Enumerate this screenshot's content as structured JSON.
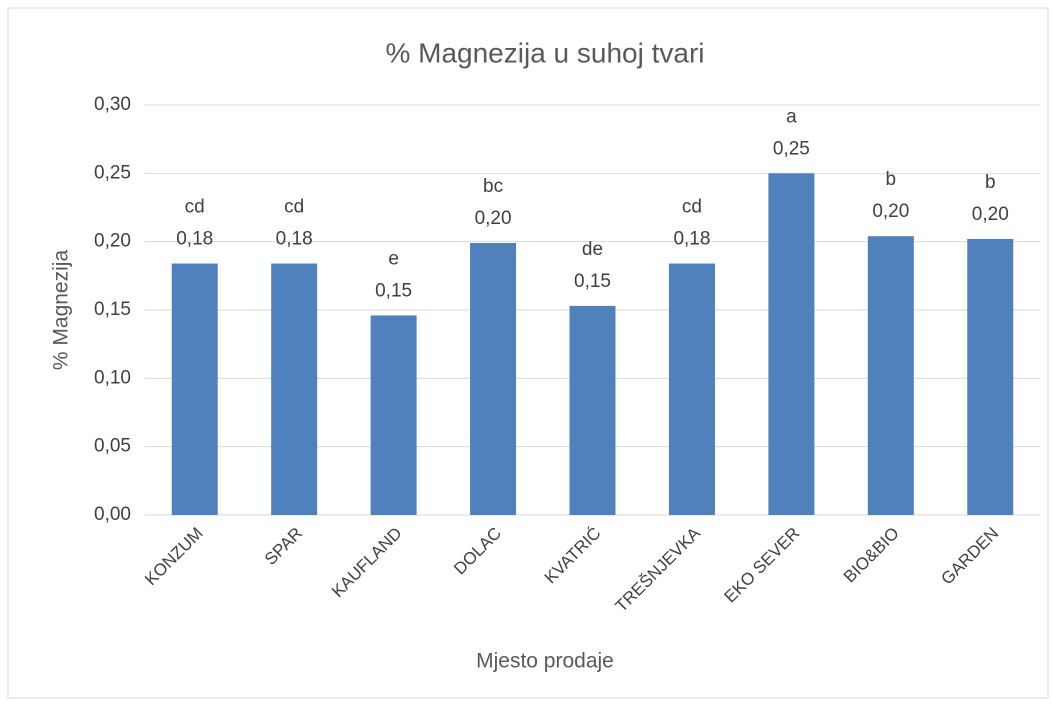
{
  "chart_data": {
    "type": "bar",
    "title": "% Magnezija u suhoj tvari",
    "x_label": "Mjesto prodaje",
    "y_label": "% Magnezija",
    "categories": [
      "KONZUM",
      "SPAR",
      "KAUFLAND",
      "DOLAC",
      "KVATRIĆ",
      "TREŠNJEVKA",
      "EKO SEVER",
      "BIO&BIO",
      "GARDEN"
    ],
    "values": [
      0.184,
      0.184,
      0.146,
      0.199,
      0.153,
      0.184,
      0.25,
      0.204,
      0.202
    ],
    "value_labels": [
      "0,18",
      "0,18",
      "0,15",
      "0,20",
      "0,15",
      "0,18",
      "0,25",
      "0,20",
      "0,20"
    ],
    "annotations": [
      "cd",
      "cd",
      "e",
      "bc",
      "de",
      "cd",
      "a",
      "b",
      "b"
    ],
    "color": "#4f81bd",
    "ylim": [
      0,
      0.3
    ],
    "yticks": [
      {
        "value": 0,
        "label": "0,00"
      },
      {
        "value": 0.05,
        "label": "0,05"
      },
      {
        "value": 0.1,
        "label": "0,10"
      },
      {
        "value": 0.15,
        "label": "0,15"
      },
      {
        "value": 0.2,
        "label": "0,20"
      },
      {
        "value": 0.25,
        "label": "0,25"
      },
      {
        "value": 0.3,
        "label": "0,30"
      }
    ],
    "grid": true
  }
}
